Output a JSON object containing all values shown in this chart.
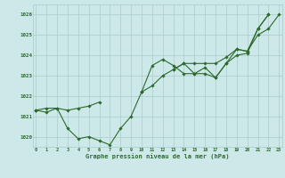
{
  "x": [
    0,
    1,
    2,
    3,
    4,
    5,
    6,
    7,
    8,
    9,
    10,
    11,
    12,
    13,
    14,
    15,
    16,
    17,
    18,
    19,
    20,
    21,
    22,
    23
  ],
  "series1": [
    1021.3,
    1021.4,
    1021.4,
    1020.4,
    1019.9,
    1020.0,
    1019.8,
    1019.6,
    1020.4,
    1021.0,
    1022.2,
    1023.5,
    1023.8,
    1023.5,
    1023.1,
    1023.1,
    1023.1,
    1022.9,
    1023.6,
    1024.0,
    1024.1,
    1025.3,
    1026.0,
    null
  ],
  "series2": [
    1021.3,
    1021.2,
    1021.4,
    1021.3,
    1021.4,
    1021.5,
    1021.7,
    null,
    null,
    null,
    1022.2,
    1022.5,
    1023.0,
    1023.3,
    1023.6,
    1023.6,
    1023.6,
    1023.6,
    1023.9,
    1024.3,
    1024.2,
    1025.3,
    1026.0,
    null
  ],
  "series3": [
    1021.3,
    null,
    null,
    null,
    null,
    null,
    null,
    null,
    null,
    null,
    1022.2,
    null,
    null,
    1023.3,
    1023.6,
    1023.1,
    1023.4,
    1022.9,
    1023.6,
    1024.3,
    1024.2,
    1025.0,
    1025.3,
    1026.0
  ],
  "ylim": [
    1019.5,
    1026.5
  ],
  "xlim": [
    -0.3,
    23.3
  ],
  "yticks": [
    1020,
    1021,
    1022,
    1023,
    1024,
    1025,
    1026
  ],
  "xticks": [
    0,
    1,
    2,
    3,
    4,
    5,
    6,
    7,
    8,
    9,
    10,
    11,
    12,
    13,
    14,
    15,
    16,
    17,
    18,
    19,
    20,
    21,
    22,
    23
  ],
  "line_color": "#2d6a2d",
  "bg_color": "#cce8e8",
  "grid_color": "#aacccc",
  "xlabel": "Graphe pression niveau de la mer (hPa)",
  "xlabel_color": "#2d6a2d",
  "tick_color": "#2d6a2d",
  "marker": "D",
  "markersize": 1.8,
  "linewidth": 0.8
}
